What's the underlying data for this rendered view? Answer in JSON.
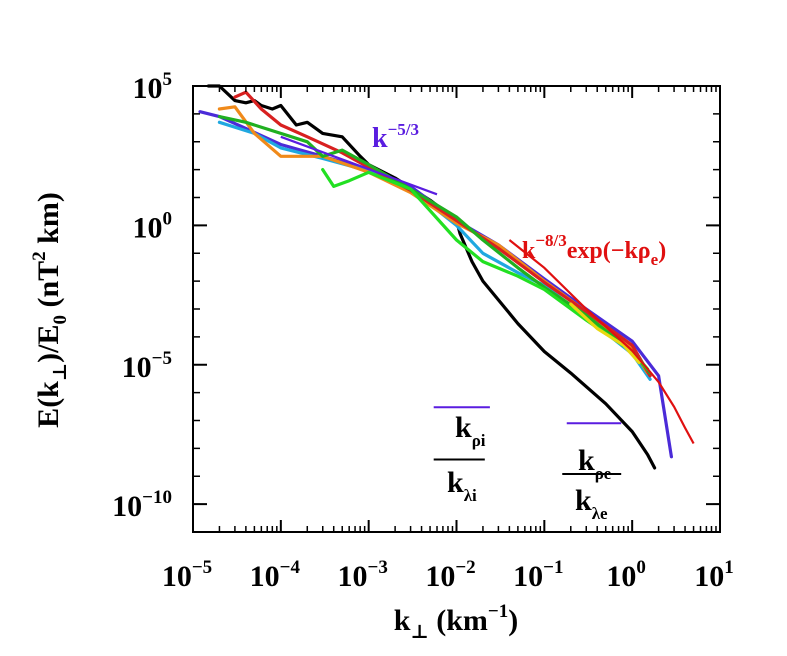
{
  "chart_data": {
    "type": "line",
    "xscale": "log",
    "yscale": "log",
    "xlim": [
      1e-05,
      10
    ],
    "ylim": [
      1e-11,
      100000.0
    ],
    "xlabel": {
      "base": "k",
      "sub": "⊥",
      "unit_open": " (km",
      "unit_sup": "−1",
      "unit_close": ")"
    },
    "ylabel": {
      "p1": "E(k",
      "sub1": "⊥",
      "p2": ")/E",
      "sub2": "0",
      "p3": " (nT",
      "sup": "2",
      "p4": " km)"
    },
    "x_ticks": [
      {
        "value": 1e-05,
        "base": "10",
        "exp": "−5"
      },
      {
        "value": 0.0001,
        "base": "10",
        "exp": "−4"
      },
      {
        "value": 0.001,
        "base": "10",
        "exp": "−3"
      },
      {
        "value": 0.01,
        "base": "10",
        "exp": "−2"
      },
      {
        "value": 0.1,
        "base": "10",
        "exp": "−1"
      },
      {
        "value": 1,
        "base": "10",
        "exp": "0"
      },
      {
        "value": 10,
        "base": "10",
        "exp": "1"
      }
    ],
    "y_ticks": [
      {
        "value": 100000.0,
        "base": "10",
        "exp": "5"
      },
      {
        "value": 1,
        "base": "10",
        "exp": "0"
      },
      {
        "value": 1e-05,
        "base": "10",
        "exp": "−5"
      },
      {
        "value": 1e-10,
        "base": "10",
        "exp": "−10"
      }
    ],
    "reference_lines": [
      {
        "name": "k^-5/3",
        "color": "#5a1de0",
        "x": [
          0.0001,
          0.006
        ],
        "y": [
          1500.0,
          13.0
        ],
        "label": {
          "base": "k",
          "sup": "−5/3"
        }
      },
      {
        "name": "k^-8/3 exp(-k rho_e)",
        "color": "#e01010",
        "x": [
          0.04,
          0.1,
          0.3,
          1.0,
          2.0,
          3.0,
          4.0,
          5.0
        ],
        "y": [
          0.3,
          0.03,
          0.001,
          3.2e-05,
          2.4e-06,
          3.1e-07,
          5.5e-08,
          1.5e-08
        ],
        "label": {
          "base": "k",
          "sup": "−8/3",
          "mid": "exp(−kρ",
          "sub": "e",
          "end": ")"
        }
      }
    ],
    "scale_markers": [
      {
        "name": "k_rho_i",
        "base": "k",
        "sub": "ρi",
        "color": "#5a1de0",
        "x_start": 0.0055,
        "x_end": 0.024,
        "y": 3e-07
      },
      {
        "name": "k_lambda_i",
        "base": "k",
        "sub": "λi",
        "color": "#000000",
        "x_start": 0.0055,
        "x_end": 0.021,
        "y": 4e-09
      },
      {
        "name": "k_rho_e",
        "base": "k",
        "sub": "ρe",
        "color": "#5a1de0",
        "x_start": 0.18,
        "x_end": 0.75,
        "y": 8e-08
      },
      {
        "name": "k_lambda_e",
        "base": "k",
        "sub": "λe",
        "color": "#000000",
        "x_start": 0.16,
        "x_end": 0.75,
        "y": 1.2e-09
      }
    ],
    "series": [
      {
        "name": "black",
        "color": "#000000",
        "x": [
          1.5e-05,
          2e-05,
          3e-05,
          4e-05,
          5e-05,
          6e-05,
          8e-05,
          0.0001,
          0.00015,
          0.0002,
          0.0003,
          0.0005,
          0.0008,
          0.001,
          0.002,
          0.005,
          0.009,
          0.01,
          0.011,
          0.015,
          0.02,
          0.05,
          0.1,
          0.2,
          0.5,
          1.0,
          1.5,
          1.8
        ],
        "y": [
          100000.0,
          120000.0,
          30000.0,
          25000.0,
          30000.0,
          20000.0,
          15000.0,
          20000.0,
          4000.0,
          5000.0,
          2000.0,
          1500.0,
          300.0,
          150.0,
          50.0,
          8,
          2,
          1.5,
          0.5,
          0.05,
          0.01,
          0.0003,
          3e-05,
          5e-06,
          4e-07,
          4e-08,
          6e-09,
          2e-09
        ]
      },
      {
        "name": "purple",
        "color": "#4b2bd8",
        "x": [
          1.2e-05,
          2e-05,
          4e-05,
          0.0001,
          0.0003,
          0.001,
          0.003,
          0.01,
          0.03,
          0.1,
          0.3,
          1.0,
          2.0,
          2.8
        ],
        "y": [
          12000.0,
          8000.0,
          3000.0,
          800.0,
          300.0,
          100.0,
          25.0,
          1.5,
          0.2,
          0.012,
          0.001,
          7e-05,
          4e-06,
          5e-09
        ]
      },
      {
        "name": "cyan",
        "color": "#20a8e0",
        "x": [
          2e-05,
          5e-05,
          0.0001,
          0.0003,
          0.001,
          0.003,
          0.01,
          0.02,
          0.05,
          0.1,
          0.3,
          1.0,
          1.6
        ],
        "y": [
          5000.0,
          2000.0,
          600.0,
          250.0,
          90.0,
          20.0,
          1.0,
          0.1,
          0.02,
          0.007,
          0.0005,
          2.5e-05,
          3e-06
        ]
      },
      {
        "name": "orange",
        "color": "#f08a1a",
        "x": [
          2e-05,
          3e-05,
          5e-05,
          0.0001,
          0.0003,
          0.001,
          0.003,
          0.01,
          0.03,
          0.1,
          0.3,
          1.0,
          1.5
        ],
        "y": [
          15000.0,
          18000.0,
          2000.0,
          300.0,
          300.0,
          80.0,
          15.0,
          1.2,
          0.2,
          0.01,
          0.0008,
          4e-05,
          5e-06
        ]
      },
      {
        "name": "red",
        "color": "#d82020",
        "x": [
          3e-05,
          4e-05,
          6e-05,
          0.0001,
          0.0002,
          0.0005,
          0.001,
          0.003,
          0.01,
          0.03,
          0.1,
          0.3,
          1.0,
          1.6
        ],
        "y": [
          40000.0,
          60000.0,
          15000.0,
          4000.0,
          1500.0,
          400.0,
          120.0,
          18.0,
          1.5,
          0.15,
          0.009,
          0.0008,
          5e-05,
          4e-06
        ]
      },
      {
        "name": "green",
        "color": "#20b020",
        "x": [
          2e-05,
          4e-05,
          0.0001,
          0.0002,
          0.0003,
          0.0005,
          0.001,
          0.003,
          0.01,
          0.02,
          0.05,
          0.1,
          0.3,
          1.0,
          1.6
        ],
        "y": [
          8000.0,
          5000.0,
          2000.0,
          1000.0,
          300.0,
          500.0,
          150.0,
          20.0,
          2,
          0.3,
          0.03,
          0.006,
          0.0006,
          3e-05,
          5e-06
        ]
      },
      {
        "name": "bright-green",
        "color": "#22e022",
        "x": [
          0.0003,
          0.0004,
          0.0006,
          0.001,
          0.003,
          0.01,
          0.02,
          0.05,
          0.1,
          0.3,
          1.0,
          1.5
        ],
        "y": [
          100.0,
          25.0,
          40.0,
          80.0,
          20.0,
          0.3,
          0.05,
          0.015,
          0.005,
          0.0004,
          3e-05,
          7e-06
        ]
      },
      {
        "name": "yellow",
        "color": "#e8d810",
        "x": [
          0.2,
          0.4,
          0.8,
          1.2
        ],
        "y": [
          0.0015,
          0.0002,
          5e-05,
          1.2e-05
        ]
      }
    ]
  }
}
